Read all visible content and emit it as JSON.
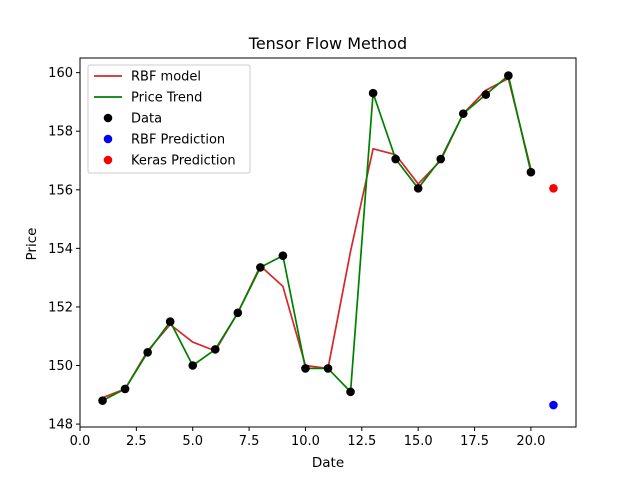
{
  "chart_data": {
    "type": "line",
    "title": "Tensor Flow Method",
    "xlabel": "Date",
    "ylabel": "Price",
    "xlim": [
      0.0,
      22.0
    ],
    "ylim": [
      147.9,
      160.5
    ],
    "x_ticks": [
      0.0,
      2.5,
      5.0,
      7.5,
      10.0,
      12.5,
      15.0,
      17.5,
      20.0
    ],
    "x_tick_labels": [
      "0.0",
      "2.5",
      "5.0",
      "7.5",
      "10.0",
      "12.5",
      "15.0",
      "17.5",
      "20.0"
    ],
    "y_ticks": [
      148,
      150,
      152,
      154,
      156,
      158,
      160
    ],
    "y_tick_labels": [
      "148",
      "150",
      "152",
      "154",
      "156",
      "158",
      "160"
    ],
    "grid": false,
    "legend_position": "upper-left",
    "series": [
      {
        "name": "RBF model",
        "kind": "line",
        "color": "#d62728",
        "x": [
          1,
          2,
          3,
          4,
          5,
          6,
          7,
          8,
          9,
          10,
          11,
          12,
          13,
          14,
          15,
          16,
          17,
          18,
          19,
          20
        ],
        "y": [
          148.9,
          149.2,
          150.5,
          151.4,
          150.8,
          150.5,
          151.8,
          153.4,
          152.7,
          150.0,
          149.9,
          153.9,
          157.4,
          157.2,
          156.2,
          157.0,
          158.6,
          159.4,
          159.8,
          156.7
        ]
      },
      {
        "name": "Price Trend",
        "kind": "line",
        "color": "#008000",
        "x": [
          1,
          2,
          3,
          4,
          5,
          6,
          7,
          8,
          9,
          10,
          11,
          12,
          13,
          14,
          15,
          16,
          17,
          18,
          19,
          20
        ],
        "y": [
          148.8,
          149.2,
          150.45,
          151.5,
          150.0,
          150.55,
          151.8,
          153.35,
          153.75,
          149.9,
          149.9,
          149.1,
          159.3,
          157.05,
          156.05,
          157.05,
          158.6,
          159.25,
          159.9,
          156.6
        ]
      },
      {
        "name": "Data",
        "kind": "scatter",
        "color": "#000000",
        "x": [
          1,
          2,
          3,
          4,
          5,
          6,
          7,
          8,
          9,
          10,
          11,
          12,
          13,
          14,
          15,
          16,
          17,
          18,
          19,
          20
        ],
        "y": [
          148.8,
          149.2,
          150.45,
          151.5,
          150.0,
          150.55,
          151.8,
          153.35,
          153.75,
          149.9,
          149.9,
          149.1,
          159.3,
          157.05,
          156.05,
          157.05,
          158.6,
          159.25,
          159.9,
          156.6
        ]
      },
      {
        "name": "RBF Prediction",
        "kind": "scatter",
        "color": "#0000ff",
        "x": [
          21
        ],
        "y": [
          148.65
        ]
      },
      {
        "name": "Keras Prediction",
        "kind": "scatter",
        "color": "#ff0000",
        "x": [
          21
        ],
        "y": [
          156.05
        ]
      }
    ]
  }
}
